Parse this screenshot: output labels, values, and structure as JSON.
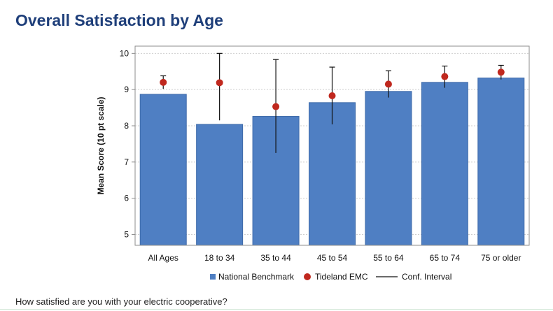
{
  "page": {
    "title": "Overall Satisfaction by Age",
    "question": "How satisfied are you with your electric cooperative?"
  },
  "colors": {
    "bar": "#4f7fc3",
    "bar_stroke": "#3e6aa9",
    "point": "#c0281e",
    "ci": "#111111",
    "grid": "#cfcfcf",
    "title": "#1f3f7a"
  },
  "chart_data": {
    "type": "bar",
    "title": "",
    "xlabel": "",
    "ylabel": "Mean Score (10 pt scale)",
    "ylim": [
      4.7,
      10.2
    ],
    "yticks": [
      5,
      6,
      7,
      8,
      9,
      10
    ],
    "grid": true,
    "legend_position": "bottom",
    "categories": [
      "All Ages",
      "18 to 34",
      "35 to 44",
      "45 to 54",
      "55 to 64",
      "65 to 74",
      "75 or older"
    ],
    "series": [
      {
        "name": "National Benchmark",
        "kind": "bar",
        "values": [
          8.87,
          8.04,
          8.26,
          8.64,
          8.95,
          9.2,
          9.32
        ]
      },
      {
        "name": "Tideland EMC",
        "kind": "point",
        "values": [
          9.2,
          9.19,
          8.53,
          8.83,
          9.15,
          9.36,
          9.48
        ]
      },
      {
        "name": "Conf. Interval",
        "kind": "errorbar",
        "low": [
          9.02,
          8.15,
          7.25,
          8.04,
          8.78,
          9.05,
          9.28
        ],
        "high": [
          9.38,
          10.0,
          9.83,
          9.62,
          9.52,
          9.65,
          9.67
        ]
      }
    ]
  }
}
